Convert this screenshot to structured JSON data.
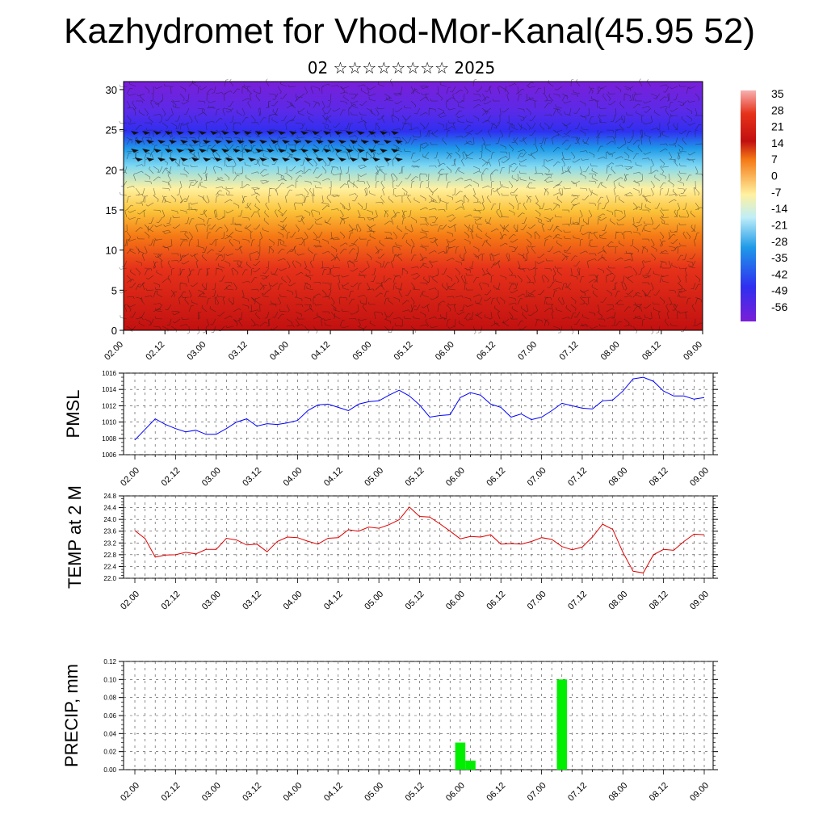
{
  "header": {
    "title": "Kazhydromet for Vhod-Mor-Kanal(45.95 52)",
    "subtitle": "02 ☆☆☆☆☆☆☆☆ 2025"
  },
  "colorbar": {
    "labels": [
      "35",
      "28",
      "21",
      "14",
      "7",
      "0",
      "-7",
      "-14",
      "-21",
      "-28",
      "-35",
      "-42",
      "-49",
      "-56"
    ]
  },
  "chart_data": [
    {
      "type": "heatmap",
      "name": "vertical cross-section",
      "x_ticks": [
        "02.00",
        "02.12",
        "03.00",
        "03.12",
        "04.00",
        "04.12",
        "05.00",
        "05.12",
        "06.00",
        "06.12",
        "07.00",
        "07.12",
        "08.00",
        "08.12",
        "09.00"
      ],
      "y_ticks": [
        "0",
        "5",
        "10",
        "15",
        "20",
        "25",
        "30"
      ],
      "ylim": [
        0,
        31
      ],
      "colorscale_range": [
        -56,
        35
      ],
      "colors": [
        "#7a1fd8",
        "#2f2ff0",
        "#1f9ae8",
        "#7fd8f2",
        "#fff1a0",
        "#fbc43a",
        "#f57a15",
        "#e6321a",
        "#c21010"
      ],
      "overlay": "wind barbs"
    },
    {
      "type": "line",
      "ylabel": "PMSL",
      "ylim": [
        1006,
        1016
      ],
      "y_ticks": [
        "1006",
        "1008",
        "1010",
        "1012",
        "1014",
        "1016"
      ],
      "x_ticks": [
        "02.00",
        "02.12",
        "03.00",
        "03.12",
        "04.00",
        "04.12",
        "05.00",
        "05.12",
        "06.00",
        "06.12",
        "07.00",
        "07.12",
        "08.00",
        "08.12",
        "09.00"
      ],
      "color": "#0000ff",
      "step_hours": 3,
      "values": [
        1007.8,
        1009.1,
        1010.4,
        1009.7,
        1009.2,
        1008.8,
        1009.0,
        1008.5,
        1008.5,
        1009.2,
        1010.0,
        1010.4,
        1009.5,
        1009.8,
        1009.7,
        1009.9,
        1010.2,
        1011.4,
        1012.1,
        1012.2,
        1011.8,
        1011.4,
        1012.2,
        1012.5,
        1012.6,
        1013.3,
        1013.9,
        1013.2,
        1012.1,
        1010.6,
        1010.8,
        1010.9,
        1013.0,
        1013.6,
        1013.3,
        1012.2,
        1011.8,
        1010.6,
        1011.0,
        1010.3,
        1010.6,
        1011.4,
        1012.3,
        1012.0,
        1011.7,
        1011.6,
        1012.6,
        1012.7,
        1013.8,
        1015.3,
        1015.5,
        1015.0,
        1013.8,
        1013.2,
        1013.2,
        1012.8,
        1013.0
      ]
    },
    {
      "type": "line",
      "ylabel": "TEMP at 2 M",
      "ylim": [
        22.0,
        24.8
      ],
      "y_ticks": [
        "22.0",
        "22.4",
        "22.8",
        "23.2",
        "23.6",
        "24.0",
        "24.4",
        "24.8"
      ],
      "x_ticks": [
        "02.00",
        "02.12",
        "03.00",
        "03.12",
        "04.00",
        "04.12",
        "05.00",
        "05.12",
        "06.00",
        "06.12",
        "07.00",
        "07.12",
        "08.00",
        "08.12",
        "09.00"
      ],
      "color": "#e00000",
      "step_hours": 3,
      "values": [
        23.62,
        23.35,
        22.72,
        22.79,
        22.8,
        22.88,
        22.83,
        22.98,
        22.98,
        23.36,
        23.3,
        23.13,
        23.16,
        22.9,
        23.25,
        23.4,
        23.38,
        23.26,
        23.16,
        23.36,
        23.38,
        23.65,
        23.6,
        23.74,
        23.7,
        23.82,
        23.99,
        24.42,
        24.1,
        24.08,
        23.85,
        23.6,
        23.34,
        23.42,
        23.4,
        23.48,
        23.16,
        23.18,
        23.16,
        23.25,
        23.38,
        23.32,
        23.08,
        22.97,
        23.06,
        23.4,
        23.84,
        23.66,
        22.88,
        22.24,
        22.18,
        22.8,
        22.98,
        22.95,
        23.25,
        23.5,
        23.48
      ]
    },
    {
      "type": "bar",
      "ylabel": "PRECIP, mm",
      "ylim": [
        0,
        0.12
      ],
      "y_ticks": [
        "0.00",
        "0.02",
        "0.04",
        "0.06",
        "0.08",
        "0.10",
        "0.12"
      ],
      "x_ticks": [
        "02.00",
        "02.12",
        "03.00",
        "03.12",
        "04.00",
        "04.12",
        "05.00",
        "05.12",
        "06.00",
        "06.12",
        "07.00",
        "07.12",
        "08.00",
        "08.12",
        "09.00"
      ],
      "color": "#00ee00",
      "bars": [
        {
          "hour": 96,
          "value": 0.03
        },
        {
          "hour": 99,
          "value": 0.01
        },
        {
          "hour": 126,
          "value": 0.1
        }
      ]
    }
  ]
}
